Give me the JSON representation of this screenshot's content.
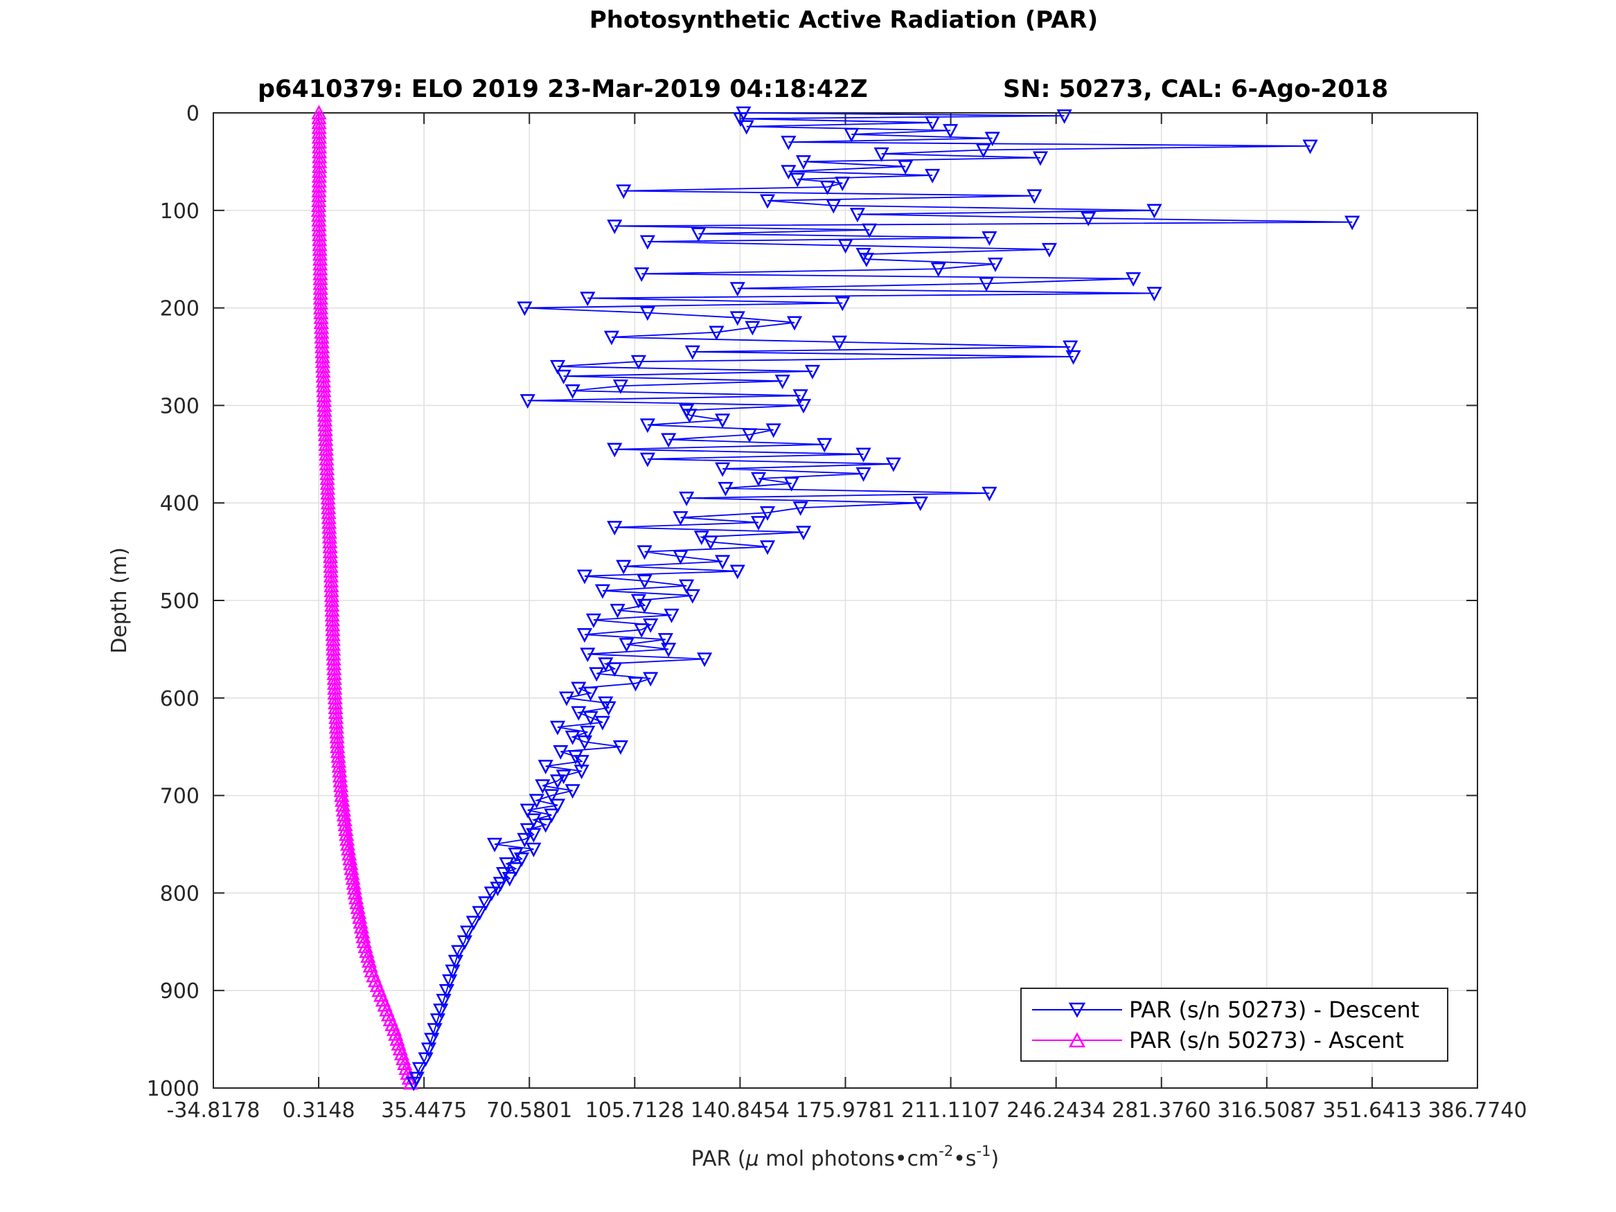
{
  "chart_data": {
    "type": "line",
    "title": "Photosynthetic Active Radiation (PAR)",
    "subtitle_left": "p6410379: ELO 2019 23-Mar-2019 04:18:42Z",
    "subtitle_right": "SN: 50273, CAL: 6-Ago-2018",
    "xlabel_prefix": "PAR (",
    "xlabel_mu": "μ",
    "xlabel_mid": " mol photons•cm",
    "xlabel_exp1": "-2",
    "xlabel_bullet": "•s",
    "xlabel_exp2": "-1",
    "xlabel_suffix": ")",
    "ylabel": "Depth (m)",
    "xlim": [
      -34.8178,
      386.774
    ],
    "ylim": [
      0,
      1000
    ],
    "y_reversed": true,
    "grid": true,
    "x_ticks": [
      -34.8178,
      0.3148,
      35.4475,
      70.5801,
      105.7128,
      140.8454,
      175.9781,
      211.1107,
      246.2434,
      281.376,
      316.5087,
      351.6413,
      386.774
    ],
    "x_tick_labels": [
      "-34.8178",
      "0.3148",
      "35.4475",
      "70.5801",
      "105.7128",
      "140.8454",
      "175.9781",
      "211.1107",
      "246.2434",
      "281.3760",
      "316.5087",
      "351.6413",
      "386.7740"
    ],
    "y_ticks": [
      0,
      100,
      200,
      300,
      400,
      500,
      600,
      700,
      800,
      900,
      1000
    ],
    "y_tick_labels": [
      "0",
      "100",
      "200",
      "300",
      "400",
      "500",
      "600",
      "700",
      "800",
      "900",
      "1000"
    ],
    "legend_position": "bottom-right",
    "series": [
      {
        "name": "PAR (s/n 50273) - Descent",
        "color": "#0000ff",
        "marker": "triangle-down",
        "depth": [
          0,
          3,
          6,
          10,
          14,
          18,
          22,
          26,
          30,
          34,
          38,
          42,
          46,
          50,
          55,
          60,
          64,
          68,
          72,
          76,
          80,
          85,
          90,
          95,
          100,
          104,
          108,
          112,
          116,
          120,
          124,
          128,
          132,
          136,
          140,
          145,
          150,
          155,
          160,
          165,
          170,
          175,
          180,
          185,
          190,
          195,
          200,
          205,
          210,
          215,
          220,
          225,
          230,
          235,
          240,
          245,
          250,
          255,
          260,
          265,
          270,
          275,
          280,
          285,
          290,
          295,
          300,
          305,
          310,
          315,
          320,
          325,
          330,
          335,
          340,
          345,
          350,
          355,
          360,
          365,
          370,
          375,
          380,
          385,
          390,
          395,
          400,
          405,
          410,
          415,
          420,
          425,
          430,
          435,
          440,
          445,
          450,
          455,
          460,
          465,
          470,
          475,
          480,
          485,
          490,
          495,
          500,
          505,
          510,
          515,
          520,
          525,
          530,
          535,
          540,
          545,
          550,
          555,
          560,
          565,
          570,
          575,
          580,
          585,
          590,
          595,
          600,
          605,
          610,
          615,
          620,
          625,
          630,
          635,
          640,
          645,
          650,
          655,
          660,
          665,
          670,
          675,
          680,
          685,
          690,
          695,
          700,
          705,
          710,
          715,
          720,
          725,
          730,
          735,
          740,
          745,
          750,
          755,
          760,
          765,
          770,
          775,
          780,
          785,
          790,
          795,
          800,
          810,
          820,
          830,
          840,
          850,
          860,
          870,
          880,
          890,
          900,
          910,
          920,
          930,
          940,
          950,
          960,
          970,
          980,
          990,
          995
        ],
        "par": [
          142,
          249,
          141,
          205,
          143,
          211,
          178,
          225,
          157,
          331,
          222,
          188,
          241,
          162,
          196,
          157,
          205,
          160,
          175,
          170,
          102,
          239,
          150,
          172,
          279,
          180,
          257,
          345,
          99,
          184,
          127,
          224,
          110,
          176,
          244,
          182,
          183,
          226,
          207,
          108,
          272,
          223,
          140,
          279,
          90,
          175,
          69,
          110,
          140,
          159,
          145,
          133,
          98,
          174,
          251,
          125,
          252,
          107,
          80,
          165,
          82,
          155,
          101,
          85,
          161,
          70,
          162,
          123,
          124,
          135,
          110,
          152,
          144,
          117,
          169,
          99,
          182,
          110,
          192,
          135,
          182,
          147,
          158,
          136,
          224,
          123,
          201,
          161,
          150,
          121,
          147,
          99,
          162,
          128,
          131,
          150,
          109,
          121,
          135,
          102,
          140,
          89,
          109,
          123,
          95,
          125,
          107,
          109,
          100,
          118,
          92,
          111,
          108,
          89,
          116,
          103,
          117,
          90,
          129,
          96,
          99,
          93,
          111,
          106,
          87,
          91,
          83,
          96,
          97,
          87,
          91,
          95,
          80,
          90,
          85,
          89,
          101,
          81,
          86,
          88,
          76,
          88,
          82,
          80,
          75,
          85,
          78,
          73,
          80,
          70,
          78,
          72,
          76,
          70,
          72,
          69,
          59,
          72,
          66,
          68,
          63,
          66,
          62,
          64,
          61,
          60,
          58,
          56,
          54,
          52,
          50,
          49,
          47,
          46,
          45,
          44,
          43,
          42,
          41,
          40,
          39,
          38,
          37,
          36,
          34,
          33,
          32
        ]
      },
      {
        "name": "PAR (s/n 50273) - Ascent",
        "color": "#ff00ff",
        "marker": "triangle-up",
        "depth": [
          0,
          50,
          100,
          150,
          200,
          250,
          300,
          350,
          400,
          450,
          500,
          550,
          600,
          650,
          700,
          750,
          800,
          850,
          880,
          900,
          920,
          940,
          960,
          980,
          995
        ],
        "par": [
          0.4,
          0.6,
          0.3,
          0.8,
          1.0,
          1.6,
          2.2,
          2.9,
          3.5,
          4.2,
          4.7,
          5.2,
          5.8,
          6.6,
          8.0,
          10.0,
          12.5,
          15.5,
          18.0,
          20.5,
          23.0,
          25.5,
          27.5,
          29.5,
          31.0
        ]
      }
    ]
  }
}
